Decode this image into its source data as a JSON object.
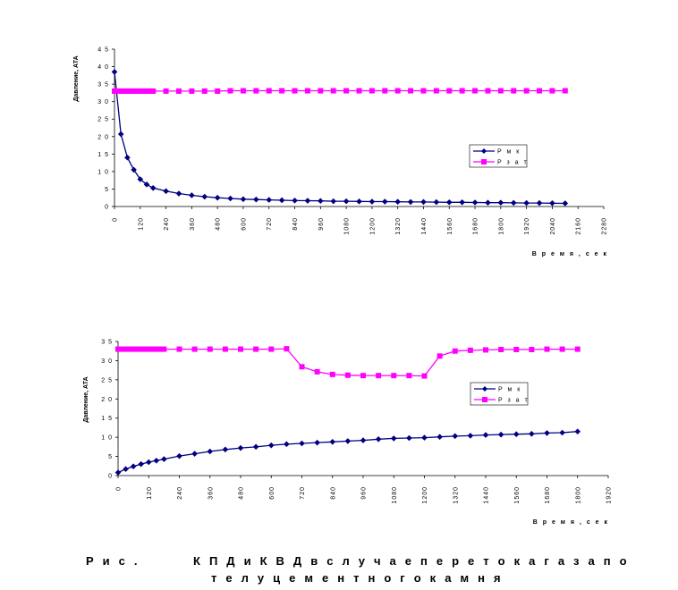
{
  "chart_data": [
    {
      "type": "line",
      "ylabel": "Давление, АТА",
      "xlabel": "В р е м я , с е к",
      "xlim": [
        0,
        2280
      ],
      "ylim": [
        0,
        4.5
      ],
      "x_ticks": [
        "0",
        "120",
        "240",
        "360",
        "480",
        "600",
        "720",
        "840",
        "960",
        "1080",
        "1200",
        "1320",
        "1440",
        "1560",
        "1680",
        "1800",
        "1920",
        "2040",
        "2160",
        "2280"
      ],
      "y_ticks": [
        "0",
        "5",
        "1 0",
        "1 5",
        "2 0",
        "2 5",
        "3 0",
        "3 5",
        "4 0",
        "4 5"
      ],
      "legend_position": "right",
      "series": [
        {
          "name": "P м к",
          "color": "#000080",
          "marker": "diamond",
          "x": [
            0,
            30,
            60,
            90,
            120,
            150,
            180,
            240,
            300,
            360,
            420,
            480,
            540,
            600,
            660,
            720,
            780,
            840,
            900,
            960,
            1020,
            1080,
            1140,
            1200,
            1260,
            1320,
            1380,
            1440,
            1500,
            1560,
            1620,
            1680,
            1740,
            1800,
            1860,
            1920,
            1980,
            2040,
            2100
          ],
          "y": [
            3.85,
            2.07,
            1.4,
            1.05,
            0.78,
            0.63,
            0.53,
            0.44,
            0.37,
            0.32,
            0.28,
            0.25,
            0.23,
            0.21,
            0.2,
            0.19,
            0.18,
            0.17,
            0.165,
            0.16,
            0.15,
            0.15,
            0.145,
            0.14,
            0.14,
            0.135,
            0.13,
            0.13,
            0.125,
            0.12,
            0.12,
            0.115,
            0.11,
            0.11,
            0.105,
            0.1,
            0.1,
            0.095,
            0.09
          ]
        },
        {
          "name": "P з а т",
          "color": "#ff00ff",
          "marker": "square",
          "x": [
            0,
            15,
            30,
            45,
            60,
            75,
            90,
            105,
            120,
            135,
            150,
            165,
            180,
            240,
            300,
            360,
            420,
            480,
            540,
            600,
            660,
            720,
            780,
            840,
            900,
            960,
            1020,
            1080,
            1140,
            1200,
            1260,
            1320,
            1380,
            1440,
            1500,
            1560,
            1620,
            1680,
            1740,
            1800,
            1860,
            1920,
            1980,
            2040,
            2100
          ],
          "y": [
            3.3,
            3.3,
            3.3,
            3.3,
            3.3,
            3.3,
            3.3,
            3.3,
            3.3,
            3.3,
            3.3,
            3.3,
            3.3,
            3.3,
            3.3,
            3.3,
            3.3,
            3.3,
            3.31,
            3.31,
            3.31,
            3.31,
            3.31,
            3.31,
            3.31,
            3.31,
            3.31,
            3.31,
            3.31,
            3.31,
            3.31,
            3.31,
            3.31,
            3.31,
            3.31,
            3.31,
            3.31,
            3.31,
            3.31,
            3.31,
            3.31,
            3.31,
            3.31,
            3.31,
            3.31
          ]
        }
      ]
    },
    {
      "type": "line",
      "ylabel": "Давление, АТА",
      "xlabel": "В р е м я , с е к",
      "xlim": [
        0,
        1920
      ],
      "ylim": [
        0,
        3.5
      ],
      "x_ticks": [
        "0",
        "120",
        "240",
        "360",
        "480",
        "600",
        "720",
        "840",
        "960",
        "1080",
        "1200",
        "1320",
        "1440",
        "1560",
        "1680",
        "1800",
        "1920"
      ],
      "y_ticks": [
        "0",
        "5",
        "1 0",
        "1 5",
        "2 0",
        "2 5",
        "3 0",
        "3 5"
      ],
      "legend_position": "right",
      "series": [
        {
          "name": "P м к",
          "color": "#000080",
          "marker": "diamond",
          "x": [
            0,
            30,
            60,
            90,
            120,
            150,
            180,
            240,
            300,
            360,
            420,
            480,
            540,
            600,
            660,
            720,
            780,
            840,
            900,
            960,
            1020,
            1080,
            1140,
            1200,
            1260,
            1320,
            1380,
            1440,
            1500,
            1560,
            1620,
            1680,
            1740,
            1800
          ],
          "y": [
            0.08,
            0.17,
            0.24,
            0.3,
            0.35,
            0.39,
            0.43,
            0.51,
            0.57,
            0.63,
            0.68,
            0.72,
            0.75,
            0.79,
            0.82,
            0.84,
            0.86,
            0.88,
            0.9,
            0.92,
            0.95,
            0.97,
            0.98,
            0.99,
            1.01,
            1.03,
            1.04,
            1.06,
            1.07,
            1.08,
            1.09,
            1.11,
            1.12,
            1.15
          ]
        },
        {
          "name": "P з а т",
          "color": "#ff00ff",
          "marker": "square",
          "x": [
            0,
            15,
            30,
            45,
            60,
            75,
            90,
            105,
            120,
            135,
            150,
            165,
            180,
            240,
            300,
            360,
            420,
            480,
            540,
            600,
            660,
            720,
            780,
            840,
            900,
            960,
            1020,
            1080,
            1140,
            1200,
            1260,
            1320,
            1380,
            1440,
            1500,
            1560,
            1620,
            1680,
            1740,
            1800
          ],
          "y": [
            3.3,
            3.3,
            3.3,
            3.3,
            3.3,
            3.3,
            3.3,
            3.3,
            3.3,
            3.3,
            3.3,
            3.3,
            3.3,
            3.3,
            3.3,
            3.3,
            3.3,
            3.3,
            3.3,
            3.3,
            3.31,
            2.84,
            2.71,
            2.64,
            2.62,
            2.61,
            2.61,
            2.61,
            2.61,
            2.6,
            3.12,
            3.25,
            3.27,
            3.28,
            3.29,
            3.29,
            3.29,
            3.3,
            3.3,
            3.3
          ]
        }
      ]
    }
  ],
  "caption": {
    "fig": "Р и с .",
    "line1": "К П Д   и  К В Д   в  с л у ч а е  п е р е т о к а  г а з а  п о",
    "line2": "т е л у  ц е м е н т н о г о  к а м н я"
  }
}
